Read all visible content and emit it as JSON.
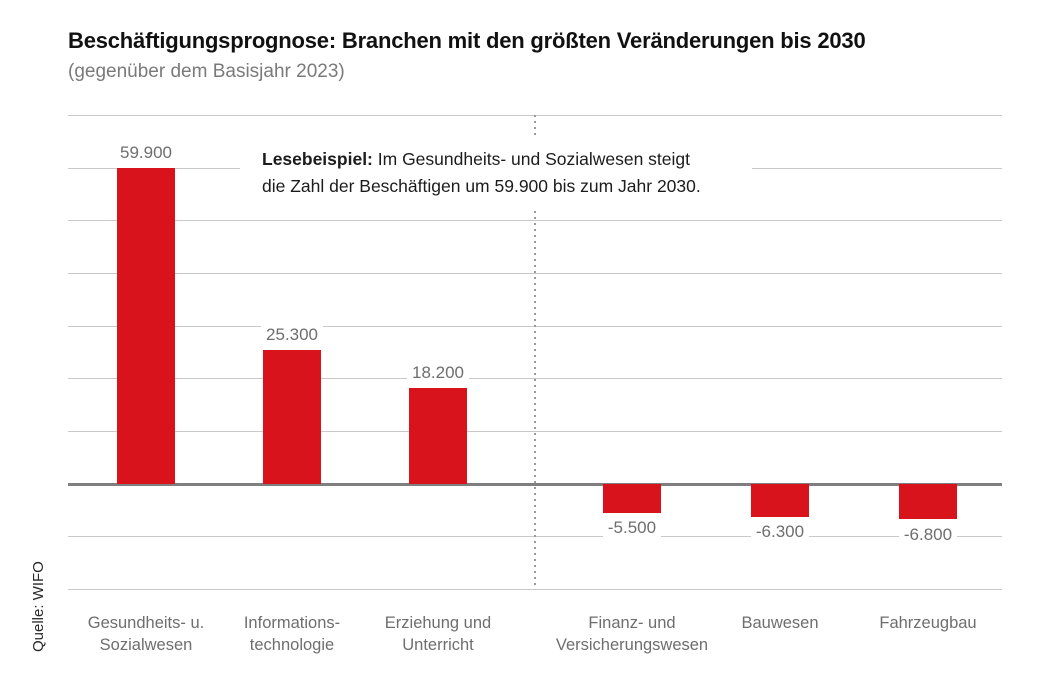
{
  "header": {
    "title": "Beschäftigungsprognose: Branchen mit den größten Veränderungen bis 2030",
    "subtitle": "(gegenüber dem Basisjahr 2023)"
  },
  "source": "Quelle: WIFO",
  "annotation": {
    "label": "Lesebeispiel:",
    "line1_rest": "Im Gesundheits- und Sozialwesen steigt",
    "line2": "die Zahl der Beschäftigen um 59.900 bis zum Jahr 2030."
  },
  "colors": {
    "bar-red": "#d9131c",
    "grid": "#c9c9c9",
    "zero": "#7f7f7f",
    "gray-text": "#6e6e6e",
    "title": "#111111",
    "subtitle": "#7a7a7a",
    "divider": "#9a9a9a",
    "annotation": "#1c1c1c"
  },
  "chart_data": {
    "type": "bar",
    "title": "Beschäftigungsprognose: Branchen mit den größten Veränderungen bis 2030",
    "subtitle": "(gegenüber dem Basisjahr 2023)",
    "categories": [
      "Gesundheits- u. Sozialwesen",
      "Informationstechnologie",
      "Erziehung und Unterricht",
      "Finanz- und Versicherungswesen",
      "Bauwesen",
      "Fahrzeugbau"
    ],
    "category_lines": [
      [
        "Gesundheits- u.",
        "Sozialwesen"
      ],
      [
        "Informations-",
        "technologie"
      ],
      [
        "Erziehung und",
        "Unterricht"
      ],
      [
        "Finanz- und",
        "Versicherungswesen"
      ],
      [
        "Bauwesen"
      ],
      [
        "Fahrzeugbau"
      ]
    ],
    "values": [
      59900,
      25300,
      18200,
      -5500,
      -6300,
      -6800
    ],
    "value_labels": [
      "59.900",
      "25.300",
      "18.200",
      "-5.500",
      "-6.300",
      "-6.800"
    ],
    "xlabel": "",
    "ylabel": "",
    "ylim": [
      -20000,
      70000
    ],
    "grid_interval": 10000,
    "grid": "horizontal",
    "legend": "none",
    "bar_color": "#d9131c",
    "divider_after_index": 2,
    "source": "Quelle: WIFO"
  }
}
